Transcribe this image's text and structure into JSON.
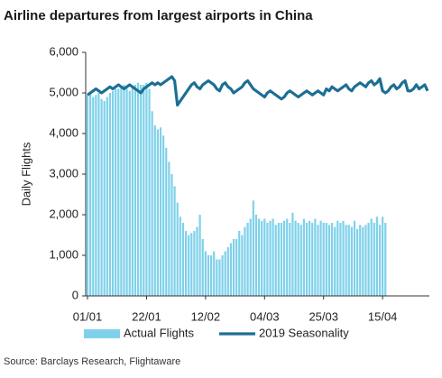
{
  "chart_data": {
    "type": "bar_line",
    "title": "Airline departures from largest airports in China",
    "y_label": "Daily Flights",
    "source": "Source: Barclays Research, Flightaware",
    "categories": [
      "01/01",
      null,
      null,
      null,
      null,
      null,
      null,
      null,
      null,
      null,
      null,
      null,
      null,
      null,
      null,
      null,
      null,
      null,
      null,
      null,
      null,
      "22/01",
      null,
      null,
      null,
      null,
      null,
      null,
      null,
      null,
      null,
      null,
      null,
      null,
      null,
      null,
      null,
      null,
      null,
      null,
      null,
      null,
      "12/02",
      null,
      null,
      null,
      null,
      null,
      null,
      null,
      null,
      null,
      null,
      null,
      null,
      null,
      null,
      null,
      null,
      null,
      null,
      null,
      null,
      "04/03",
      null,
      null,
      null,
      null,
      null,
      null,
      null,
      null,
      null,
      null,
      null,
      null,
      null,
      null,
      null,
      null,
      null,
      null,
      null,
      null,
      "25/03",
      null,
      null,
      null,
      null,
      null,
      null,
      null,
      null,
      null,
      null,
      null,
      null,
      null,
      null,
      null,
      null,
      null,
      null,
      null,
      null,
      "15/04",
      null,
      null,
      null,
      null,
      null,
      null,
      null,
      null,
      null,
      null,
      null,
      null,
      null,
      null,
      null,
      null
    ],
    "series": [
      {
        "name": "Actual Flights",
        "kind": "bar",
        "color": "#7fd1ea",
        "values": [
          4950,
          5000,
          4900,
          4950,
          5000,
          4850,
          4800,
          4900,
          5000,
          5050,
          5100,
          5100,
          5150,
          5200,
          5100,
          5050,
          5150,
          5200,
          5250,
          5200,
          5200,
          5250,
          5100,
          4550,
          4200,
          4100,
          4150,
          3950,
          3650,
          3300,
          3000,
          2700,
          2300,
          1950,
          1800,
          1600,
          1500,
          1550,
          1600,
          1700,
          2000,
          1400,
          1100,
          1000,
          1000,
          1100,
          900,
          900,
          1000,
          1100,
          1200,
          1300,
          1400,
          1400,
          1600,
          1500,
          1700,
          1800,
          1900,
          2350,
          2000,
          1900,
          1850,
          1900,
          1800,
          1850,
          1900,
          1750,
          1800,
          1800,
          1850,
          1900,
          1800,
          2050,
          1850,
          1800,
          1750,
          1900,
          1800,
          1850,
          1800,
          1900,
          1750,
          1850,
          1800,
          1800,
          1750,
          1800,
          1700,
          1850,
          1800,
          1850,
          1750,
          1750,
          1700,
          1850,
          1650,
          1750,
          1700,
          1750,
          1800,
          1900,
          1800,
          1950,
          1750,
          1950,
          1800,
          null,
          null,
          null,
          null,
          null,
          null,
          null,
          null,
          null,
          null,
          null,
          null,
          null,
          null,
          null
        ]
      },
      {
        "name": "2019 Seasonality",
        "kind": "line",
        "color": "#1c6f94",
        "values": [
          4950,
          5000,
          5050,
          5100,
          5050,
          5000,
          5050,
          5100,
          5150,
          5100,
          5150,
          5200,
          5150,
          5100,
          5150,
          5200,
          5150,
          5100,
          5050,
          5000,
          5100,
          5150,
          5200,
          5250,
          5200,
          5250,
          5200,
          5250,
          5300,
          5350,
          5400,
          5300,
          4700,
          4800,
          4900,
          5000,
          5100,
          5200,
          5250,
          5150,
          5100,
          5200,
          5250,
          5300,
          5250,
          5200,
          5100,
          5050,
          5200,
          5250,
          5150,
          5100,
          5000,
          5050,
          5100,
          5150,
          5250,
          5300,
          5200,
          5100,
          5050,
          5000,
          4950,
          4900,
          5000,
          5050,
          5000,
          4950,
          4900,
          4850,
          4900,
          5000,
          5050,
          5000,
          4950,
          4900,
          4950,
          5000,
          5050,
          5000,
          4950,
          5000,
          5050,
          5000,
          4950,
          5100,
          5050,
          5150,
          5100,
          5050,
          5100,
          5150,
          5200,
          5100,
          5050,
          5150,
          5200,
          5250,
          5200,
          5150,
          5250,
          5300,
          5200,
          5250,
          5350,
          5050,
          5000,
          5050,
          5150,
          5200,
          5100,
          5150,
          5250,
          5300,
          5050,
          5050,
          5100,
          5200,
          5100,
          5150,
          5200,
          5050
        ]
      }
    ],
    "ylim": [
      0,
      6000
    ],
    "yticks": [
      0,
      {
        "value": 1000,
        "label": "1,000"
      },
      {
        "value": 2000,
        "label": "2,000"
      },
      {
        "value": 3000,
        "label": "3,000"
      },
      {
        "value": 4000,
        "label": "4,000"
      },
      {
        "value": 5000,
        "label": "5,000"
      },
      {
        "value": 6000,
        "label": "6,000"
      }
    ],
    "legend": "bottom"
  }
}
